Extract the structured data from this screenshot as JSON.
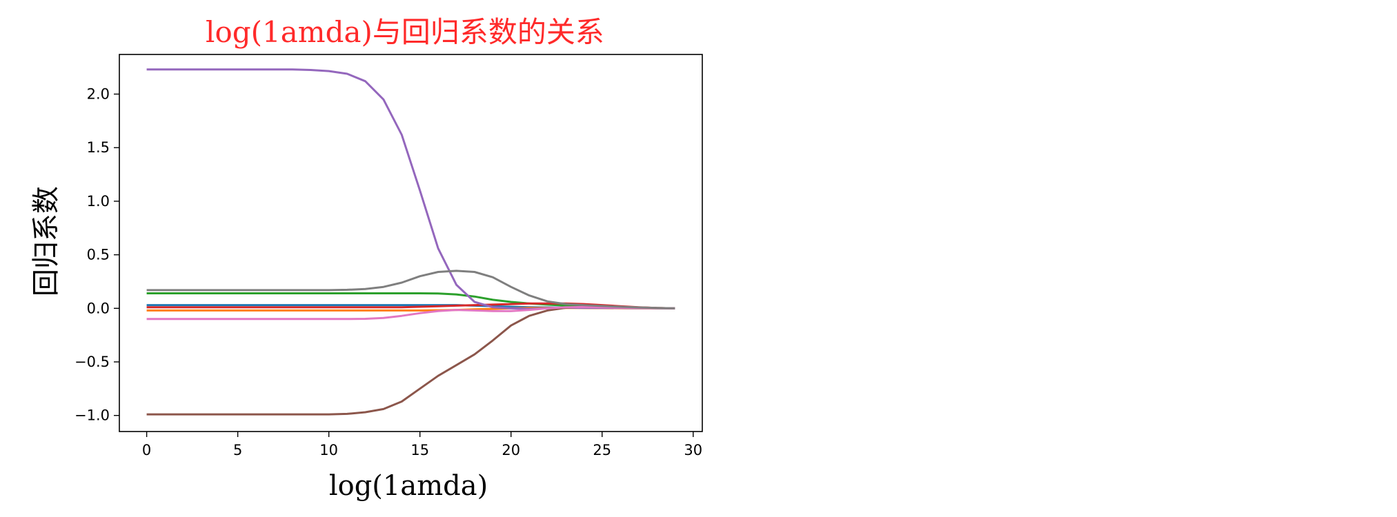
{
  "chart_data": {
    "type": "line",
    "title": "log(1amda)与回归系数的关系",
    "title_color": "#ff2a2a",
    "xlabel": "log(1amda)",
    "ylabel": "回归系数",
    "xlim": [
      -1.5,
      30.5
    ],
    "ylim": [
      -1.15,
      2.37
    ],
    "xticks": [
      0,
      5,
      10,
      15,
      20,
      25,
      30
    ],
    "yticks": [
      -1.0,
      -0.5,
      0.0,
      0.5,
      1.0,
      1.5,
      2.0
    ],
    "xtick_labels": [
      "0",
      "5",
      "10",
      "15",
      "20",
      "25",
      "30"
    ],
    "ytick_labels": [
      "−1.0",
      "−0.5",
      "0.0",
      "0.5",
      "1.0",
      "1.5",
      "2.0"
    ],
    "grid": false,
    "x": [
      0,
      1,
      2,
      3,
      4,
      5,
      6,
      7,
      8,
      9,
      10,
      11,
      12,
      13,
      14,
      15,
      16,
      17,
      18,
      19,
      20,
      21,
      22,
      23,
      24,
      25,
      26,
      27,
      28,
      29
    ],
    "series": [
      {
        "color": "#1f77b4",
        "values": [
          0.03,
          0.03,
          0.03,
          0.03,
          0.03,
          0.03,
          0.03,
          0.03,
          0.03,
          0.03,
          0.03,
          0.03,
          0.03,
          0.03,
          0.03,
          0.03,
          0.03,
          0.03,
          0.025,
          0.02,
          0.015,
          0.01,
          0.008,
          0.006,
          0.004,
          0.003,
          0.002,
          0.001,
          0.0,
          0.0
        ]
      },
      {
        "color": "#ff7f0e",
        "values": [
          -0.02,
          -0.02,
          -0.02,
          -0.02,
          -0.02,
          -0.02,
          -0.02,
          -0.02,
          -0.02,
          -0.02,
          -0.02,
          -0.02,
          -0.02,
          -0.02,
          -0.02,
          -0.02,
          -0.018,
          -0.015,
          -0.01,
          -0.005,
          0.0,
          0.003,
          0.004,
          0.004,
          0.003,
          0.002,
          0.001,
          0.0,
          0.0,
          0.0
        ]
      },
      {
        "color": "#2ca02c",
        "values": [
          0.14,
          0.14,
          0.14,
          0.14,
          0.14,
          0.14,
          0.14,
          0.14,
          0.14,
          0.14,
          0.14,
          0.14,
          0.14,
          0.14,
          0.14,
          0.14,
          0.138,
          0.13,
          0.11,
          0.08,
          0.06,
          0.045,
          0.035,
          0.025,
          0.018,
          0.012,
          0.007,
          0.004,
          0.001,
          0.0
        ]
      },
      {
        "color": "#d62728",
        "values": [
          0.01,
          0.01,
          0.01,
          0.01,
          0.01,
          0.01,
          0.01,
          0.01,
          0.01,
          0.01,
          0.01,
          0.01,
          0.01,
          0.01,
          0.01,
          0.015,
          0.02,
          0.025,
          0.03,
          0.035,
          0.04,
          0.045,
          0.045,
          0.045,
          0.04,
          0.03,
          0.02,
          0.01,
          0.003,
          0.0
        ]
      },
      {
        "color": "#9467bd",
        "values": [
          2.23,
          2.23,
          2.23,
          2.23,
          2.23,
          2.23,
          2.23,
          2.23,
          2.23,
          2.225,
          2.215,
          2.19,
          2.12,
          1.95,
          1.62,
          1.1,
          0.56,
          0.22,
          0.06,
          0.01,
          0.0,
          -0.005,
          0.0,
          0.005,
          0.005,
          0.004,
          0.003,
          0.002,
          0.001,
          0.0
        ]
      },
      {
        "color": "#8c564b",
        "values": [
          -0.99,
          -0.99,
          -0.99,
          -0.99,
          -0.99,
          -0.99,
          -0.99,
          -0.99,
          -0.99,
          -0.99,
          -0.99,
          -0.985,
          -0.97,
          -0.94,
          -0.87,
          -0.75,
          -0.63,
          -0.53,
          -0.43,
          -0.3,
          -0.16,
          -0.07,
          -0.02,
          0.005,
          0.015,
          0.015,
          0.012,
          0.008,
          0.004,
          0.0
        ]
      },
      {
        "color": "#e377c2",
        "values": [
          -0.1,
          -0.1,
          -0.1,
          -0.1,
          -0.1,
          -0.1,
          -0.1,
          -0.1,
          -0.1,
          -0.1,
          -0.1,
          -0.1,
          -0.098,
          -0.09,
          -0.07,
          -0.045,
          -0.025,
          -0.015,
          -0.02,
          -0.025,
          -0.025,
          -0.015,
          0.0,
          0.01,
          0.012,
          0.01,
          0.007,
          0.004,
          0.001,
          0.0
        ]
      },
      {
        "color": "#7f7f7f",
        "values": [
          0.17,
          0.17,
          0.17,
          0.17,
          0.17,
          0.17,
          0.17,
          0.17,
          0.17,
          0.17,
          0.17,
          0.173,
          0.18,
          0.2,
          0.24,
          0.3,
          0.34,
          0.35,
          0.34,
          0.29,
          0.2,
          0.12,
          0.065,
          0.04,
          0.03,
          0.022,
          0.015,
          0.008,
          0.003,
          0.0
        ]
      }
    ]
  }
}
